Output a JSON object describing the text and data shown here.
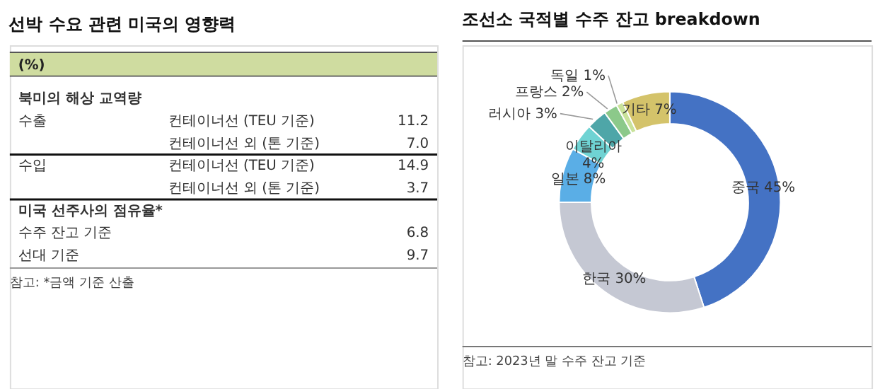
{
  "chart_data": [
    {
      "type": "other",
      "title": "선박 수요 관련 미국의 영향력",
      "subtitle": "(%)",
      "y_categories": [
        "북미의 해상 교역량",
        "수출",
        null,
        "수입",
        null,
        "미국 선주사의 점유율*",
        "수주 잔고 기준",
        "선대 기준"
      ],
      "y2_categories": [
        null,
        "컨테이너선 (TEU 기준)",
        "컨테이너선 외 (톤 기준)",
        "컨테이너선 (TEU 기준)",
        "컨테이너선 외 (톤 기준)",
        null,
        null,
        null
      ],
      "values": [
        null,
        11.2,
        7.0,
        14.9,
        3.7,
        null,
        6.8,
        9.7
      ],
      "value_labels": [
        null,
        "11.2",
        "7.0",
        "14.9",
        "3.7",
        null,
        "6.8",
        "9.7"
      ],
      "annotations": [
        "참고: *금액 기준 산출"
      ]
    },
    {
      "type": "donut",
      "title": "조선소 국적별 수주 잔고 breakdown",
      "categories": [
        "중국",
        "한국",
        "일본",
        "이탈리아",
        "러시아",
        "프랑스",
        "독일",
        "기타"
      ],
      "values": [
        45,
        30,
        8,
        4,
        3,
        2,
        1,
        7
      ],
      "value_labels": [
        "45%",
        "30%",
        "8%",
        "4%",
        "3%",
        "2%",
        "1%",
        "7%"
      ],
      "colors": [
        "#4472c4",
        "#c5c8d3",
        "#5aaee6",
        "#6fd3d3",
        "#4ea6a8",
        "#8cc98a",
        "#c9e29a",
        "#d4c36a"
      ],
      "annotations": [
        "참고: 2023년 말 수주 잔고 기준"
      ]
    }
  ]
}
